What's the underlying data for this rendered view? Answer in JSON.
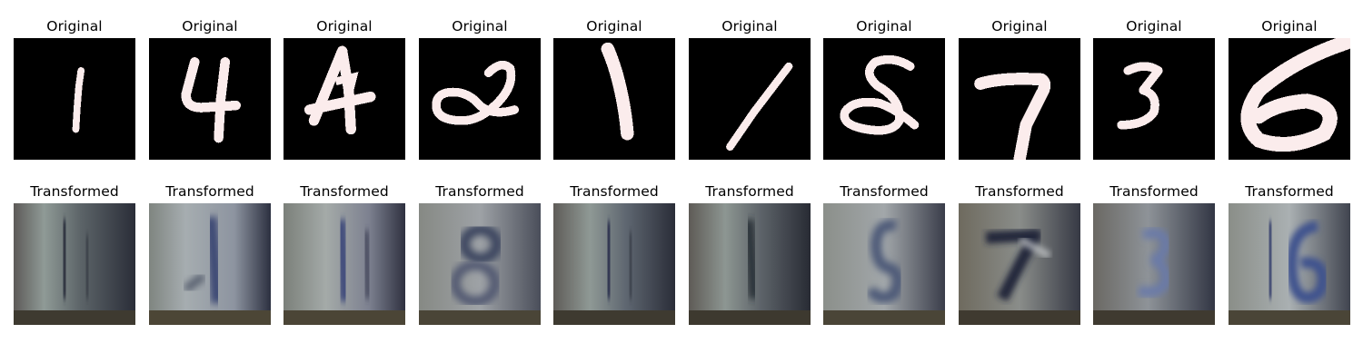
{
  "figure": {
    "original_title": "Original",
    "transformed_title": "Transformed"
  },
  "colors": {
    "background": "#ffffff",
    "mnist_background": "#000000",
    "mnist_stroke": "#fbecec",
    "svhn_base": "#6e7277"
  },
  "panels": [
    {
      "original_digit": "1",
      "transformed_digit": "1"
    },
    {
      "original_digit": "4",
      "transformed_digit": "1"
    },
    {
      "original_digit": "4",
      "transformed_digit": "1"
    },
    {
      "original_digit": "2",
      "transformed_digit": "8"
    },
    {
      "original_digit": "1",
      "transformed_digit": "1"
    },
    {
      "original_digit": "1",
      "transformed_digit": "1"
    },
    {
      "original_digit": "8",
      "transformed_digit": "8"
    },
    {
      "original_digit": "7",
      "transformed_digit": "7"
    },
    {
      "original_digit": "3",
      "transformed_digit": "3"
    },
    {
      "original_digit": "6",
      "transformed_digit": "6"
    }
  ]
}
